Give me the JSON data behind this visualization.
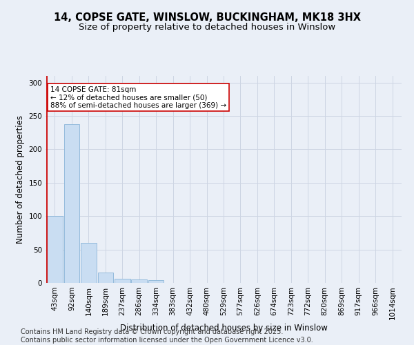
{
  "title_line1": "14, COPSE GATE, WINSLOW, BUCKINGHAM, MK18 3HX",
  "title_line2": "Size of property relative to detached houses in Winslow",
  "xlabel": "Distribution of detached houses by size in Winslow",
  "ylabel": "Number of detached properties",
  "categories": [
    "43sqm",
    "92sqm",
    "140sqm",
    "189sqm",
    "237sqm",
    "286sqm",
    "334sqm",
    "383sqm",
    "432sqm",
    "480sqm",
    "529sqm",
    "577sqm",
    "626sqm",
    "674sqm",
    "723sqm",
    "772sqm",
    "820sqm",
    "869sqm",
    "917sqm",
    "966sqm",
    "1014sqm"
  ],
  "values": [
    100,
    238,
    60,
    16,
    6,
    5,
    4,
    0,
    0,
    0,
    0,
    0,
    0,
    0,
    0,
    0,
    0,
    0,
    0,
    0,
    0
  ],
  "bar_color": "#c9ddf2",
  "bar_edge_color": "#8ab4d8",
  "highlight_line_color": "#cc0000",
  "annotation_text": "14 COPSE GATE: 81sqm\n← 12% of detached houses are smaller (50)\n88% of semi-detached houses are larger (369) →",
  "annotation_box_facecolor": "#ffffff",
  "annotation_box_edgecolor": "#cc0000",
  "ylim": [
    0,
    310
  ],
  "yticks": [
    0,
    50,
    100,
    150,
    200,
    250,
    300
  ],
  "grid_color": "#cdd5e3",
  "background_color": "#eaeff7",
  "footer_text": "Contains HM Land Registry data © Crown copyright and database right 2025.\nContains public sector information licensed under the Open Government Licence v3.0.",
  "title_fontsize": 10.5,
  "subtitle_fontsize": 9.5,
  "annotation_fontsize": 7.5,
  "footer_fontsize": 7,
  "axis_label_fontsize": 8.5,
  "tick_fontsize": 7.5
}
